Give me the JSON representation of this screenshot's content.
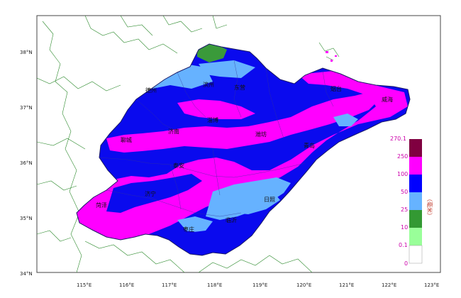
{
  "latitudes": [
    {
      "label": "38°N"
    },
    {
      "label": "37°N"
    },
    {
      "label": "36°N"
    },
    {
      "label": "35°N"
    },
    {
      "label": "34°N"
    }
  ],
  "longitudes": [
    {
      "label": "115°E"
    },
    {
      "label": "116°E"
    },
    {
      "label": "117°E"
    },
    {
      "label": "118°E"
    },
    {
      "label": "119°E"
    },
    {
      "label": "120°E"
    },
    {
      "label": "121°E"
    },
    {
      "label": "122°E"
    },
    {
      "label": "123°E"
    }
  ],
  "cities": [
    {
      "name": "德州"
    },
    {
      "name": "滨州"
    },
    {
      "name": "东营"
    },
    {
      "name": "烟台"
    },
    {
      "name": "威海"
    },
    {
      "name": "济南"
    },
    {
      "name": "淄博"
    },
    {
      "name": "潍坊"
    },
    {
      "name": "聊城"
    },
    {
      "name": "泰安"
    },
    {
      "name": "青岛"
    },
    {
      "name": "菏泽"
    },
    {
      "name": "济宁"
    },
    {
      "name": "日照"
    },
    {
      "name": "枣庄"
    },
    {
      "name": "临沂"
    }
  ],
  "legend": {
    "thresholds": [
      "270.1",
      "250",
      "100",
      "50",
      "25",
      "10",
      "0.1",
      "0"
    ],
    "unit": "（毫米）",
    "colors": [
      "#800040",
      "#ff00ff",
      "#0000ff",
      "#66b3ff",
      "#339933",
      "#99ff99",
      "#ffffff"
    ]
  },
  "colors": {
    "magenta": "#ff00ff",
    "blue": "#0a0aee",
    "light_blue": "#66b2ff",
    "green": "#3a9a3a",
    "border": "#2e8b2e"
  }
}
